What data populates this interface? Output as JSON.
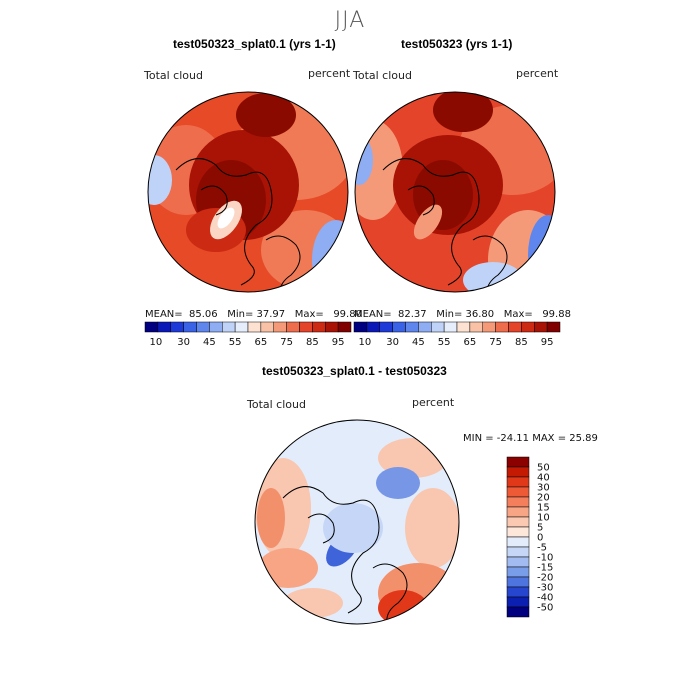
{
  "page": {
    "title": "JJA"
  },
  "panels": [
    {
      "title": "test050323_splat0.1 (yrs 1-1)",
      "variable": "Total cloud",
      "units": "percent",
      "stats": {
        "mean_label": "MEAN=",
        "mean": "85.06",
        "min_label": "Min=",
        "min": "37.97",
        "max_label": "Max=",
        "max": "99.80"
      }
    },
    {
      "title": "test050323 (yrs 1-1)",
      "variable": "Total cloud",
      "units": "percent",
      "stats": {
        "mean_label": "MEAN=",
        "mean": "82.37",
        "min_label": "Min=",
        "min": "36.80",
        "max_label": "Max=",
        "max": "99.88"
      }
    },
    {
      "title": "test050323_splat0.1 - test050323",
      "variable": "Total cloud",
      "units": "percent",
      "stats": {
        "text": "MIN = -24.11  MAX =  25.89"
      }
    }
  ],
  "colorbar_abs": {
    "labels": [
      "10",
      "30",
      "45",
      "55",
      "65",
      "75",
      "85",
      "95"
    ],
    "colors": [
      "#000080",
      "#0a18b8",
      "#1d3ad8",
      "#3a62e6",
      "#5e86ec",
      "#8fadf2",
      "#bfd2f8",
      "#e6eefc",
      "#fde2d2",
      "#f9c2a6",
      "#f49a79",
      "#ee6d4d",
      "#e4442a",
      "#cc2a12",
      "#a81306",
      "#800000"
    ]
  },
  "colorbar_diff": {
    "labels": [
      "50",
      "40",
      "30",
      "20",
      "15",
      "10",
      "5",
      "0",
      "-5",
      "-10",
      "-15",
      "-20",
      "-30",
      "-40",
      "-50"
    ],
    "colors": [
      "#8b0000",
      "#c41a04",
      "#e2381a",
      "#ef5a36",
      "#f47f5c",
      "#f8a585",
      "#fbc9b1",
      "#fde6da",
      "#e3ecfb",
      "#c6d6f6",
      "#a2bcf1",
      "#7a9dea",
      "#4e74e0",
      "#2646cf",
      "#0b1fb0",
      "#000080"
    ]
  },
  "map_colors": {
    "abs_dark": "#8b0a00",
    "abs_mid": "#d8301a",
    "abs_light": "#f07a55",
    "abs_pale": "#fbd6c4",
    "abs_blue": "#86a8ee",
    "diff_base": "#dde7fa",
    "diff_red": "#f3906c",
    "diff_pink": "#f9c6af",
    "diff_blue": "#7796e6",
    "diff_darkblue": "#3f63d8"
  }
}
